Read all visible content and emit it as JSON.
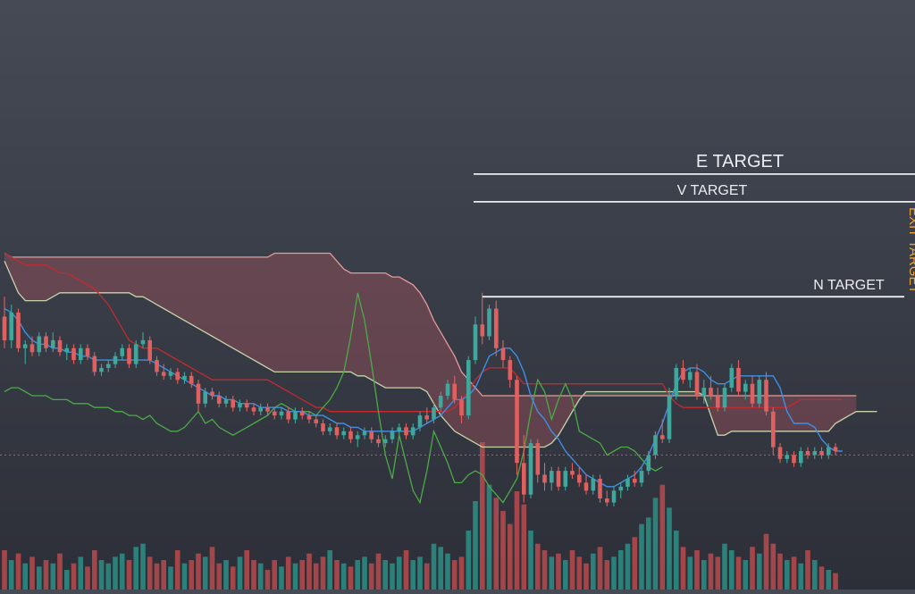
{
  "chart_data": {
    "type": "candlestick",
    "theme": {
      "up": "#3fa79c",
      "down": "#e0605f",
      "volume_up": "#2b8f86",
      "volume_down": "#b94a4e"
    },
    "candles": [
      [
        5.0,
        5.5,
        4.2,
        4.4
      ],
      [
        4.4,
        5.3,
        4.2,
        5.1
      ],
      [
        5.1,
        5.2,
        4.1,
        4.2
      ],
      [
        4.2,
        4.4,
        3.8,
        4.3
      ],
      [
        4.3,
        4.5,
        4.0,
        4.1
      ],
      [
        4.1,
        4.6,
        4.0,
        4.5
      ],
      [
        4.5,
        4.6,
        4.1,
        4.2
      ],
      [
        4.2,
        4.6,
        4.1,
        4.4
      ],
      [
        4.4,
        4.5,
        4.0,
        4.1
      ],
      [
        4.1,
        4.3,
        3.9,
        4.2
      ],
      [
        4.2,
        4.3,
        3.8,
        3.9
      ],
      [
        3.9,
        4.3,
        3.8,
        4.2
      ],
      [
        4.2,
        4.3,
        3.9,
        4.0
      ],
      [
        4.0,
        4.1,
        3.5,
        3.6
      ],
      [
        3.6,
        3.8,
        3.5,
        3.7
      ],
      [
        3.7,
        3.9,
        3.6,
        3.8
      ],
      [
        3.8,
        4.1,
        3.7,
        4.0
      ],
      [
        4.0,
        4.3,
        3.9,
        4.2
      ],
      [
        4.2,
        4.3,
        3.7,
        3.8
      ],
      [
        3.8,
        4.4,
        3.7,
        4.3
      ],
      [
        4.3,
        4.6,
        4.2,
        4.4
      ],
      [
        4.4,
        4.5,
        3.8,
        3.9
      ],
      [
        3.9,
        4.0,
        3.5,
        3.6
      ],
      [
        3.6,
        3.8,
        3.4,
        3.5
      ],
      [
        3.5,
        3.7,
        3.4,
        3.6
      ],
      [
        3.6,
        3.7,
        3.3,
        3.4
      ],
      [
        3.4,
        3.6,
        3.3,
        3.5
      ],
      [
        3.5,
        3.6,
        3.2,
        3.3
      ],
      [
        3.3,
        3.4,
        2.6,
        2.8
      ],
      [
        2.8,
        3.2,
        2.7,
        3.1
      ],
      [
        3.1,
        3.2,
        2.9,
        3.0
      ],
      [
        3.0,
        3.1,
        2.7,
        2.8
      ],
      [
        2.8,
        3.0,
        2.7,
        2.9
      ],
      [
        2.9,
        3.0,
        2.6,
        2.7
      ],
      [
        2.7,
        2.9,
        2.6,
        2.8
      ],
      [
        2.8,
        2.9,
        2.6,
        2.7
      ],
      [
        2.7,
        2.8,
        2.5,
        2.6
      ],
      [
        2.6,
        2.8,
        2.5,
        2.7
      ],
      [
        2.7,
        2.8,
        2.5,
        2.6
      ],
      [
        2.6,
        2.7,
        2.4,
        2.5
      ],
      [
        2.5,
        2.7,
        2.4,
        2.6
      ],
      [
        2.6,
        2.7,
        2.3,
        2.4
      ],
      [
        2.4,
        2.7,
        2.3,
        2.6
      ],
      [
        2.6,
        2.7,
        2.4,
        2.5
      ],
      [
        2.5,
        2.6,
        2.3,
        2.4
      ],
      [
        2.4,
        2.5,
        2.2,
        2.3
      ],
      [
        2.3,
        2.4,
        2.0,
        2.1
      ],
      [
        2.1,
        2.3,
        2.0,
        2.2
      ],
      [
        2.2,
        2.3,
        1.9,
        2.0
      ],
      [
        2.0,
        2.2,
        1.9,
        2.1
      ],
      [
        2.1,
        2.2,
        1.8,
        1.9
      ],
      [
        1.9,
        2.1,
        1.7,
        2.0
      ],
      [
        2.0,
        2.2,
        1.9,
        2.1
      ],
      [
        2.1,
        2.2,
        1.8,
        1.9
      ],
      [
        1.9,
        2.0,
        1.7,
        1.8
      ],
      [
        1.8,
        2.0,
        1.7,
        1.9
      ],
      [
        1.9,
        2.2,
        1.8,
        2.1
      ],
      [
        2.1,
        2.3,
        2.0,
        2.2
      ],
      [
        2.2,
        2.3,
        1.9,
        2.0
      ],
      [
        2.0,
        2.3,
        1.9,
        2.2
      ],
      [
        2.2,
        2.6,
        2.1,
        2.5
      ],
      [
        2.5,
        2.7,
        2.3,
        2.4
      ],
      [
        2.4,
        2.8,
        2.3,
        2.7
      ],
      [
        2.7,
        3.1,
        2.6,
        3.0
      ],
      [
        3.0,
        3.4,
        2.9,
        3.3
      ],
      [
        3.3,
        3.5,
        2.8,
        2.9
      ],
      [
        2.9,
        3.0,
        2.3,
        2.5
      ],
      [
        2.5,
        4.0,
        2.4,
        3.9
      ],
      [
        3.9,
        5.0,
        3.8,
        4.8
      ],
      [
        4.8,
        5.6,
        4.3,
        4.5
      ],
      [
        4.5,
        5.3,
        4.4,
        5.2
      ],
      [
        5.2,
        5.4,
        4.0,
        4.2
      ],
      [
        4.2,
        4.4,
        3.7,
        3.9
      ],
      [
        3.9,
        4.0,
        3.2,
        3.4
      ],
      [
        3.4,
        3.5,
        1.0,
        1.3
      ],
      [
        1.3,
        2.0,
        0.3,
        0.5
      ],
      [
        0.5,
        1.9,
        0.4,
        1.8
      ],
      [
        1.8,
        1.9,
        0.8,
        1.0
      ],
      [
        1.0,
        1.3,
        0.6,
        0.8
      ],
      [
        0.8,
        1.2,
        0.6,
        1.1
      ],
      [
        1.1,
        1.2,
        0.6,
        0.7
      ],
      [
        0.7,
        1.2,
        0.6,
        1.1
      ],
      [
        1.1,
        1.3,
        0.9,
        1.0
      ],
      [
        1.0,
        1.2,
        0.7,
        0.8
      ],
      [
        0.8,
        1.0,
        0.5,
        0.6
      ],
      [
        0.6,
        1.0,
        0.5,
        0.9
      ],
      [
        0.9,
        1.0,
        0.3,
        0.4
      ],
      [
        0.4,
        0.6,
        0.2,
        0.3
      ],
      [
        0.3,
        0.7,
        0.2,
        0.6
      ],
      [
        0.6,
        0.8,
        0.4,
        0.7
      ],
      [
        0.7,
        1.0,
        0.6,
        0.9
      ],
      [
        0.9,
        1.1,
        0.7,
        0.8
      ],
      [
        0.8,
        1.2,
        0.7,
        1.1
      ],
      [
        1.1,
        1.6,
        1.0,
        1.5
      ],
      [
        1.5,
        2.1,
        1.4,
        2.0
      ],
      [
        2.0,
        2.4,
        1.8,
        1.9
      ],
      [
        1.9,
        3.2,
        1.8,
        3.0
      ],
      [
        3.0,
        3.8,
        2.9,
        3.7
      ],
      [
        3.7,
        3.9,
        3.3,
        3.4
      ],
      [
        3.4,
        3.7,
        3.2,
        3.6
      ],
      [
        3.6,
        3.8,
        2.9,
        3.0
      ],
      [
        3.0,
        3.4,
        2.8,
        3.2
      ],
      [
        3.2,
        3.5,
        2.9,
        3.0
      ],
      [
        3.0,
        3.2,
        2.6,
        2.7
      ],
      [
        2.7,
        3.3,
        2.6,
        3.2
      ],
      [
        3.2,
        3.8,
        3.1,
        3.7
      ],
      [
        3.7,
        3.9,
        3.0,
        3.1
      ],
      [
        3.1,
        3.4,
        2.9,
        3.3
      ],
      [
        3.3,
        3.5,
        2.7,
        2.8
      ],
      [
        2.8,
        3.5,
        2.7,
        3.4
      ],
      [
        3.4,
        3.6,
        2.5,
        2.6
      ],
      [
        2.6,
        2.7,
        1.5,
        1.7
      ],
      [
        1.7,
        1.8,
        1.3,
        1.4
      ],
      [
        1.4,
        1.6,
        1.3,
        1.5
      ],
      [
        1.5,
        1.6,
        1.2,
        1.3
      ],
      [
        1.3,
        1.7,
        1.2,
        1.6
      ],
      [
        1.6,
        1.7,
        1.4,
        1.5
      ],
      [
        1.5,
        1.7,
        1.4,
        1.6
      ],
      [
        1.6,
        1.7,
        1.4,
        1.5
      ],
      [
        1.5,
        1.8,
        1.4,
        1.7
      ],
      [
        1.7,
        1.8,
        1.5,
        1.6
      ]
    ],
    "volume": [
      12,
      9,
      11,
      8,
      10,
      7,
      9,
      8,
      11,
      6,
      8,
      10,
      7,
      12,
      9,
      8,
      10,
      11,
      9,
      13,
      14,
      10,
      8,
      9,
      7,
      12,
      8,
      9,
      11,
      10,
      13,
      8,
      9,
      7,
      10,
      12,
      9,
      8,
      6,
      9,
      7,
      10,
      8,
      9,
      11,
      8,
      10,
      12,
      9,
      8,
      7,
      9,
      10,
      8,
      11,
      9,
      8,
      10,
      12,
      9,
      10,
      8,
      14,
      13,
      11,
      9,
      10,
      18,
      27,
      45,
      32,
      28,
      24,
      20,
      30,
      26,
      18,
      14,
      12,
      10,
      11,
      9,
      12,
      10,
      8,
      11,
      13,
      9,
      10,
      12,
      14,
      16,
      20,
      22,
      28,
      32,
      25,
      18,
      13,
      10,
      12,
      9,
      11,
      10,
      14,
      12,
      10,
      9,
      13,
      11,
      17,
      14,
      11,
      9,
      10,
      8,
      12,
      9,
      7,
      6,
      5
    ],
    "conversion_line": [
      5.2,
      5.1,
      4.9,
      4.6,
      4.4,
      4.3,
      4.3,
      4.2,
      4.2,
      4.1,
      4.1,
      4.0,
      4.0,
      3.9,
      3.9,
      3.9,
      3.9,
      3.9,
      3.9,
      3.9,
      3.9,
      3.9,
      3.8,
      3.7,
      3.6,
      3.5,
      3.4,
      3.3,
      3.2,
      3.1,
      3.0,
      3.0,
      2.9,
      2.9,
      2.8,
      2.8,
      2.8,
      2.7,
      2.7,
      2.7,
      2.7,
      2.6,
      2.6,
      2.6,
      2.5,
      2.5,
      2.5,
      2.4,
      2.3,
      2.3,
      2.2,
      2.2,
      2.1,
      2.1,
      2.1,
      2.1,
      2.1,
      2.1,
      2.1,
      2.1,
      2.2,
      2.3,
      2.4,
      2.5,
      2.7,
      2.9,
      2.9,
      3.0,
      3.2,
      3.6,
      4.0,
      4.1,
      4.2,
      4.2,
      4.0,
      3.6,
      3.0,
      2.6,
      2.4,
      2.1,
      1.9,
      1.6,
      1.4,
      1.2,
      1.0,
      0.9,
      0.8,
      0.7,
      0.7,
      0.8,
      0.9,
      1.0,
      1.2,
      1.5,
      1.9,
      2.3,
      2.8,
      3.3,
      3.6,
      3.7,
      3.7,
      3.6,
      3.4,
      3.3,
      3.3,
      3.4,
      3.5,
      3.5,
      3.5,
      3.5,
      3.5,
      3.5,
      3.2,
      2.6,
      2.3,
      2.3,
      2.3,
      2.2,
      1.9,
      1.7,
      1.6,
      1.6
    ],
    "base_line": [
      6.6,
      6.5,
      6.4,
      6.3,
      6.3,
      6.3,
      6.3,
      6.2,
      6.1,
      6.1,
      6.0,
      5.9,
      5.8,
      5.7,
      5.5,
      5.3,
      5.0,
      4.7,
      4.4,
      4.3,
      4.2,
      4.2,
      4.2,
      4.1,
      4.0,
      3.9,
      3.8,
      3.7,
      3.6,
      3.5,
      3.4,
      3.4,
      3.4,
      3.4,
      3.4,
      3.4,
      3.4,
      3.4,
      3.4,
      3.3,
      3.2,
      3.1,
      3.0,
      2.9,
      2.8,
      2.7,
      2.7,
      2.6,
      2.6,
      2.6,
      2.6,
      2.6,
      2.6,
      2.6,
      2.6,
      2.6,
      2.6,
      2.6,
      2.6,
      2.6,
      2.6,
      2.6,
      2.6,
      2.6,
      2.6,
      2.7,
      2.9,
      3.1,
      3.4,
      3.6,
      3.7,
      3.7,
      3.7,
      3.7,
      3.5,
      3.3,
      3.3,
      3.3,
      3.3,
      3.3,
      3.3,
      3.3,
      3.3,
      3.3,
      3.3,
      3.3,
      3.3,
      3.3,
      3.3,
      3.3,
      3.3,
      3.3,
      3.3,
      3.3,
      3.3,
      3.3,
      3.0,
      2.8,
      2.7,
      2.7,
      2.7,
      2.7,
      2.7,
      2.7,
      2.7,
      2.7,
      2.7,
      2.7,
      2.7,
      2.7,
      2.7,
      2.7,
      2.7,
      2.7,
      2.8,
      2.9,
      2.9,
      2.9,
      2.9,
      2.9,
      2.9,
      2.9
    ],
    "lagging_span": [
      3.1,
      3.2,
      3.2,
      3.1,
      3.0,
      3.0,
      3.0,
      2.9,
      2.9,
      2.9,
      2.8,
      2.8,
      2.8,
      2.7,
      2.7,
      2.7,
      2.6,
      2.6,
      2.5,
      2.5,
      2.4,
      2.5,
      2.3,
      2.2,
      2.1,
      2.1,
      2.2,
      2.4,
      2.6,
      2.3,
      2.4,
      2.2,
      2.1,
      2.0,
      2.1,
      2.2,
      2.3,
      2.4,
      2.5,
      2.7,
      2.8,
      2.7,
      2.6,
      2.6,
      2.6,
      2.5,
      2.7,
      2.9,
      3.2,
      3.6,
      4.5,
      5.6,
      4.9,
      3.8,
      2.6,
      1.5,
      0.9,
      2.0,
      1.3,
      0.6,
      0.3,
      1.1,
      2.1,
      1.7,
      1.3,
      0.8,
      0.8,
      1.0,
      1.1,
      1.0,
      0.7,
      0.5,
      0.3,
      0.6,
      0.9,
      1.6,
      2.6,
      3.4,
      3.1,
      2.4,
      2.9,
      3.3,
      2.9,
      2.1,
      2.0,
      1.9,
      1.8,
      1.5,
      1.6,
      1.7,
      1.7,
      1.6,
      1.4,
      1.2,
      1.1,
      1.2
    ],
    "span_a": [
      6.4,
      6.0,
      5.6,
      5.4,
      5.4,
      5.4,
      5.4,
      5.5,
      5.6,
      5.6,
      5.6,
      5.6,
      5.6,
      5.6,
      5.6,
      5.6,
      5.6,
      5.6,
      5.6,
      5.5,
      5.5,
      5.4,
      5.3,
      5.2,
      5.1,
      5.0,
      4.9,
      4.8,
      4.7,
      4.6,
      4.5,
      4.4,
      4.3,
      4.2,
      4.1,
      4.0,
      3.9,
      3.8,
      3.7,
      3.6,
      3.6,
      3.6,
      3.6,
      3.6,
      3.6,
      3.6,
      3.6,
      3.6,
      3.6,
      3.6,
      3.6,
      3.5,
      3.5,
      3.4,
      3.3,
      3.2,
      3.2,
      3.2,
      3.2,
      3.2,
      3.2,
      3.1,
      2.8,
      2.5,
      2.3,
      2.1,
      2.0,
      1.9,
      1.8,
      1.7,
      1.7,
      1.7,
      1.7,
      1.7,
      1.7,
      1.7,
      1.7,
      1.7,
      1.7,
      1.8,
      2.0,
      2.3,
      2.6,
      2.9,
      3.1,
      3.1,
      3.1,
      3.1,
      3.1,
      3.1,
      3.1,
      3.1,
      3.1,
      3.1,
      3.1,
      3.1,
      3.1,
      3.1,
      3.1,
      3.1,
      3.1,
      3.0,
      2.5,
      2.0,
      2.0,
      2.1,
      2.1,
      2.1,
      2.1,
      2.1,
      2.1,
      2.1,
      2.1,
      2.1,
      2.1,
      2.1,
      2.1,
      2.1,
      2.1,
      2.1,
      2.3,
      2.4,
      2.5,
      2.6,
      2.6,
      2.6,
      2.6
    ],
    "span_b": [
      6.6,
      6.5,
      6.5,
      6.5,
      6.5,
      6.5,
      6.5,
      6.5,
      6.5,
      6.5,
      6.5,
      6.5,
      6.5,
      6.5,
      6.5,
      6.5,
      6.5,
      6.5,
      6.5,
      6.5,
      6.5,
      6.5,
      6.5,
      6.5,
      6.5,
      6.5,
      6.5,
      6.5,
      6.5,
      6.5,
      6.5,
      6.5,
      6.5,
      6.5,
      6.5,
      6.5,
      6.5,
      6.5,
      6.5,
      6.6,
      6.6,
      6.6,
      6.6,
      6.6,
      6.6,
      6.6,
      6.6,
      6.6,
      6.4,
      6.2,
      6.1,
      6.1,
      6.1,
      6.1,
      6.1,
      6.1,
      6.0,
      6.0,
      5.9,
      5.8,
      5.6,
      5.3,
      4.9,
      4.6,
      4.3,
      4.0,
      3.6,
      3.4,
      3.2,
      3.0,
      3.0,
      3.0,
      3.0,
      3.0,
      3.0,
      3.0,
      3.0,
      3.0,
      3.0,
      3.0,
      3.0,
      3.0,
      3.0,
      3.0,
      3.0,
      3.0,
      3.0,
      3.0,
      3.0,
      3.0,
      3.0,
      3.0,
      3.0,
      3.0,
      3.0,
      3.0,
      3.0,
      3.0,
      3.0,
      3.0,
      3.0,
      3.0,
      3.0,
      3.0,
      3.0,
      3.0,
      3.0,
      3.0,
      3.0,
      3.0,
      3.0,
      3.0,
      3.0,
      3.0,
      3.0,
      3.0,
      3.0,
      3.0,
      3.0,
      3.0,
      3.0,
      3.0,
      3.0,
      3.0
    ],
    "targets": [
      {
        "label": "E TARGET",
        "value": 8.6,
        "color": "#ecedf0"
      },
      {
        "label": "V TARGET",
        "value": 7.9,
        "color": "#ecedf0"
      },
      {
        "label": "N TARGET",
        "value": 5.5,
        "color": "#ecedf0"
      }
    ],
    "current_price": 1.5,
    "right_edge_label": "EXIT TARGET",
    "xlabel": "",
    "ylabel": "",
    "ylim": [
      -1.9,
      13.0
    ],
    "grid": false,
    "legend": "none"
  }
}
